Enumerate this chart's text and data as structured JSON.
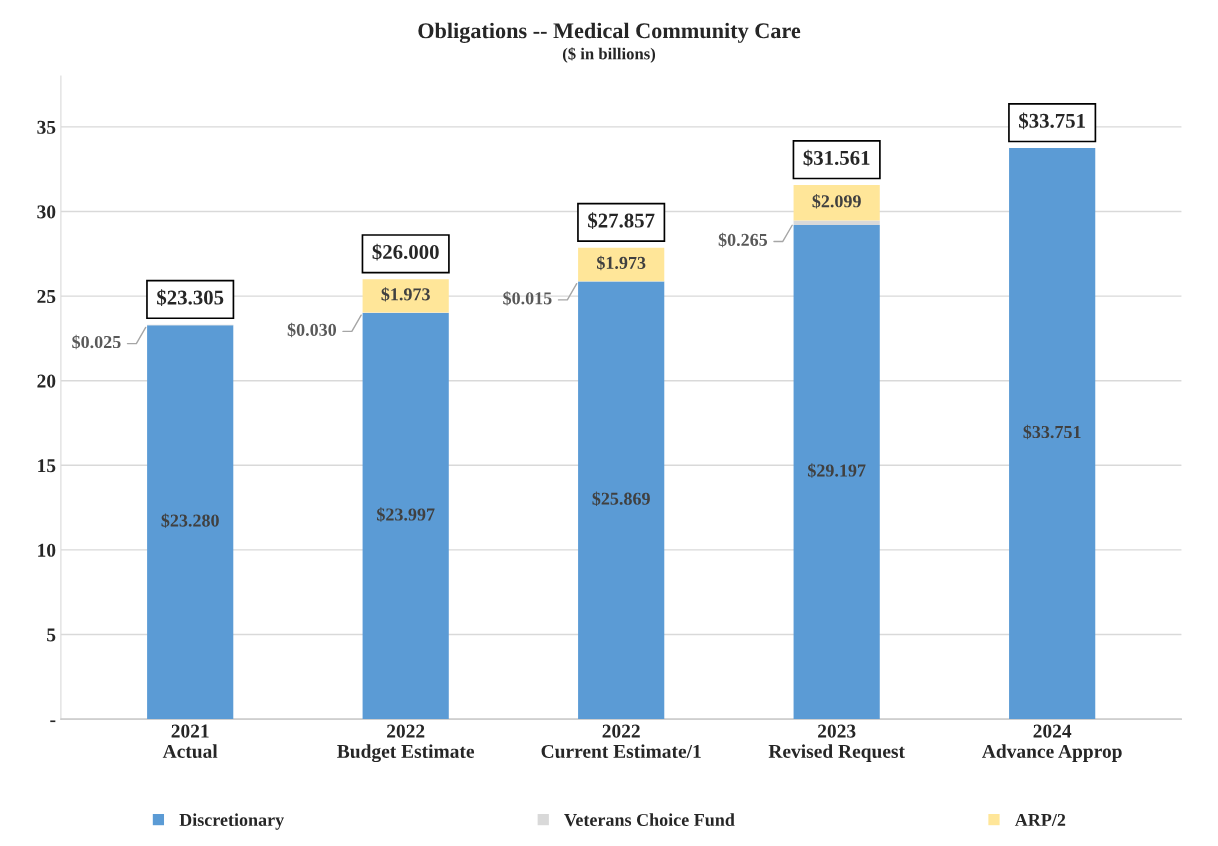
{
  "chart_data": {
    "type": "bar",
    "title": "Obligations -- Medical Community Care",
    "subtitle": "($ in billions)",
    "categories": [
      "2021\nActual",
      "2022\nBudget Estimate",
      "2022\nCurrent Estimate/1",
      "2023\nRevised Request",
      "2024\nAdvance Approp"
    ],
    "stacked": true,
    "series": [
      {
        "name": "Discretionary",
        "color": "#5b9bd5",
        "values": [
          23.28,
          23.997,
          25.869,
          29.197,
          33.751
        ],
        "value_labels": [
          "$23.280",
          "$23.997",
          "$25.869",
          "$29.197",
          "$33.751"
        ]
      },
      {
        "name": "Veterans Choice Fund",
        "color": "#d9d9d9",
        "values": [
          0.025,
          0.03,
          0.015,
          0.265,
          null
        ],
        "value_labels": [
          "$0.025",
          "$0.030",
          "$0.015",
          "$0.265",
          null
        ]
      },
      {
        "name": "ARP/2",
        "color": "#ffe699",
        "values": [
          null,
          1.973,
          1.973,
          2.099,
          null
        ],
        "value_labels": [
          null,
          "$1.973",
          "$1.973",
          "$2.099",
          null
        ]
      }
    ],
    "totals": [
      "$23.305",
      "$26.000",
      "$27.857",
      "$31.561",
      "$33.751"
    ],
    "ylim": [
      0,
      38
    ],
    "yticks": [
      {
        "value": 0,
        "label": "-"
      },
      5,
      10,
      15,
      20,
      25,
      30,
      35
    ],
    "grid": "y",
    "legend": "bottom"
  }
}
